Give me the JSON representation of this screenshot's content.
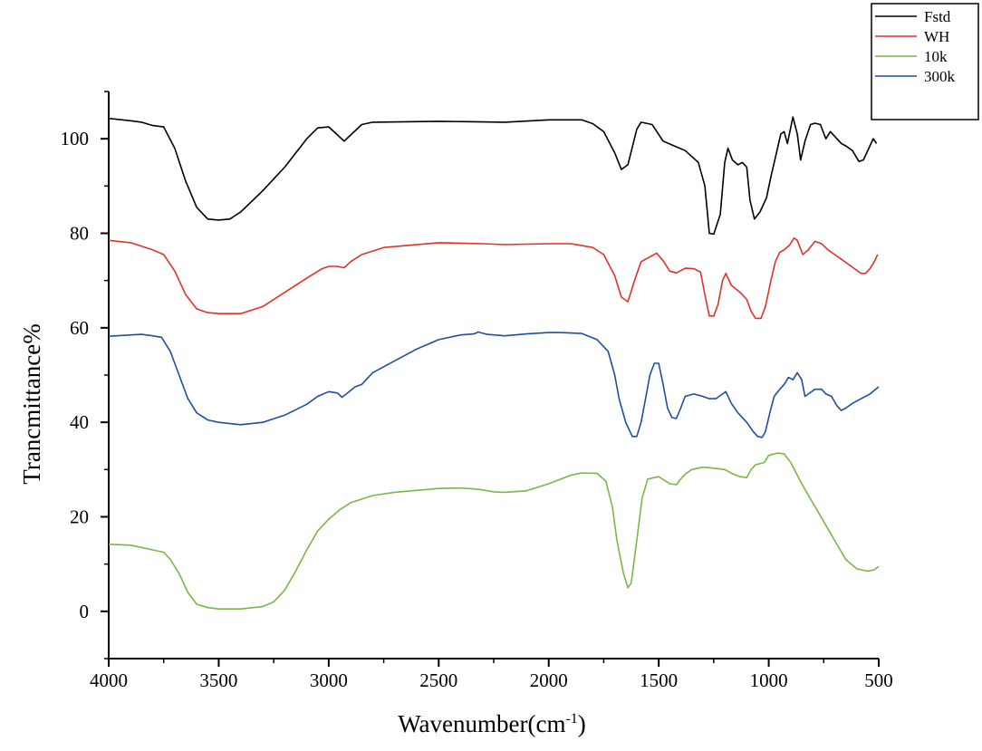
{
  "chart_data": {
    "type": "line",
    "title": "",
    "xlabel": "Wavenumber(cm",
    "xlabel_sup": "-1",
    "xlabel_close": ")",
    "ylabel": "Trancmittance%",
    "xlim": [
      4000,
      500
    ],
    "ylim": [
      -10,
      110
    ],
    "x_ticks": [
      "4000",
      "3500",
      "3000",
      "2500",
      "2000",
      "1500",
      "1000",
      "500"
    ],
    "x_tick_values": [
      4000,
      3500,
      3000,
      2500,
      2000,
      1500,
      1000,
      500
    ],
    "y_ticks": [
      "0",
      "20",
      "40",
      "60",
      "80",
      "100"
    ],
    "y_tick_values": [
      0,
      20,
      40,
      60,
      80,
      100
    ],
    "grid": false,
    "legend_position": "top-right",
    "series": [
      {
        "name": "Fstd",
        "color": "#000000",
        "points": [
          [
            4000,
            104.3
          ],
          [
            3900,
            103.8
          ],
          [
            3850,
            103.5
          ],
          [
            3800,
            102.8
          ],
          [
            3750,
            102.5
          ],
          [
            3700,
            98
          ],
          [
            3650,
            91
          ],
          [
            3600,
            85.5
          ],
          [
            3550,
            83
          ],
          [
            3500,
            82.8
          ],
          [
            3450,
            83
          ],
          [
            3400,
            84.5
          ],
          [
            3300,
            89
          ],
          [
            3200,
            94
          ],
          [
            3100,
            100
          ],
          [
            3050,
            102.3
          ],
          [
            3000,
            102.5
          ],
          [
            2960,
            100.8
          ],
          [
            2930,
            99.5
          ],
          [
            2900,
            100.8
          ],
          [
            2850,
            103
          ],
          [
            2800,
            103.5
          ],
          [
            2500,
            103.7
          ],
          [
            2200,
            103.5
          ],
          [
            2000,
            104
          ],
          [
            1850,
            104
          ],
          [
            1800,
            103.2
          ],
          [
            1750,
            101.5
          ],
          [
            1700,
            97
          ],
          [
            1670,
            93.5
          ],
          [
            1640,
            94.5
          ],
          [
            1600,
            102
          ],
          [
            1580,
            103.5
          ],
          [
            1530,
            103
          ],
          [
            1480,
            99.5
          ],
          [
            1430,
            98.5
          ],
          [
            1380,
            97.5
          ],
          [
            1320,
            95
          ],
          [
            1290,
            90
          ],
          [
            1270,
            80
          ],
          [
            1250,
            79.8
          ],
          [
            1220,
            84
          ],
          [
            1200,
            95
          ],
          [
            1185,
            98
          ],
          [
            1165,
            95.5
          ],
          [
            1140,
            94.5
          ],
          [
            1120,
            95
          ],
          [
            1100,
            94
          ],
          [
            1085,
            87
          ],
          [
            1065,
            83
          ],
          [
            1040,
            84.5
          ],
          [
            1010,
            87.5
          ],
          [
            990,
            92
          ],
          [
            965,
            97
          ],
          [
            945,
            101
          ],
          [
            930,
            101.5
          ],
          [
            915,
            99
          ],
          [
            890,
            104.6
          ],
          [
            870,
            101
          ],
          [
            855,
            95.5
          ],
          [
            835,
            99.5
          ],
          [
            810,
            103
          ],
          [
            790,
            103.3
          ],
          [
            765,
            103
          ],
          [
            740,
            100
          ],
          [
            720,
            101.5
          ],
          [
            690,
            100
          ],
          [
            670,
            99
          ],
          [
            650,
            98.5
          ],
          [
            620,
            97.5
          ],
          [
            590,
            95.2
          ],
          [
            570,
            95.5
          ],
          [
            545,
            98
          ],
          [
            525,
            100
          ],
          [
            510,
            99
          ]
        ]
      },
      {
        "name": "WH",
        "color": "#e03228",
        "points": [
          [
            4000,
            78.5
          ],
          [
            3900,
            78
          ],
          [
            3800,
            76.5
          ],
          [
            3750,
            75.5
          ],
          [
            3700,
            72
          ],
          [
            3650,
            67
          ],
          [
            3600,
            64
          ],
          [
            3550,
            63.2
          ],
          [
            3500,
            63
          ],
          [
            3400,
            63
          ],
          [
            3300,
            64.5
          ],
          [
            3200,
            67.5
          ],
          [
            3100,
            70.5
          ],
          [
            3030,
            72.5
          ],
          [
            3000,
            73
          ],
          [
            2960,
            73
          ],
          [
            2930,
            72.7
          ],
          [
            2900,
            74
          ],
          [
            2850,
            75.5
          ],
          [
            2750,
            77
          ],
          [
            2500,
            78
          ],
          [
            2300,
            77.8
          ],
          [
            2200,
            77.6
          ],
          [
            2000,
            77.8
          ],
          [
            1900,
            77.8
          ],
          [
            1800,
            77
          ],
          [
            1750,
            75.5
          ],
          [
            1700,
            71
          ],
          [
            1670,
            66.5
          ],
          [
            1640,
            65.5
          ],
          [
            1610,
            70
          ],
          [
            1580,
            74
          ],
          [
            1540,
            75
          ],
          [
            1510,
            75.8
          ],
          [
            1480,
            74.2
          ],
          [
            1450,
            72
          ],
          [
            1420,
            71.6
          ],
          [
            1380,
            72.6
          ],
          [
            1340,
            72.5
          ],
          [
            1310,
            71.8
          ],
          [
            1290,
            67
          ],
          [
            1270,
            62.5
          ],
          [
            1250,
            62.5
          ],
          [
            1230,
            65
          ],
          [
            1210,
            70
          ],
          [
            1195,
            71.5
          ],
          [
            1170,
            69
          ],
          [
            1130,
            67.5
          ],
          [
            1100,
            66
          ],
          [
            1080,
            63.5
          ],
          [
            1060,
            62
          ],
          [
            1035,
            62
          ],
          [
            1015,
            64.5
          ],
          [
            990,
            70
          ],
          [
            970,
            74
          ],
          [
            950,
            76
          ],
          [
            930,
            76.5
          ],
          [
            905,
            77.5
          ],
          [
            885,
            79
          ],
          [
            870,
            78.5
          ],
          [
            845,
            75.5
          ],
          [
            820,
            76.5
          ],
          [
            790,
            78.3
          ],
          [
            760,
            77.8
          ],
          [
            730,
            76.5
          ],
          [
            700,
            75.5
          ],
          [
            670,
            74.5
          ],
          [
            640,
            73.5
          ],
          [
            610,
            72.5
          ],
          [
            580,
            71.5
          ],
          [
            560,
            71.5
          ],
          [
            540,
            72.5
          ],
          [
            520,
            74
          ],
          [
            505,
            75.5
          ]
        ]
      },
      {
        "name": "10k",
        "color": "#7ab648",
        "points": [
          [
            4000,
            14.2
          ],
          [
            3900,
            14
          ],
          [
            3800,
            13
          ],
          [
            3750,
            12.5
          ],
          [
            3720,
            11
          ],
          [
            3680,
            8
          ],
          [
            3640,
            4
          ],
          [
            3600,
            1.5
          ],
          [
            3550,
            0.8
          ],
          [
            3500,
            0.5
          ],
          [
            3400,
            0.5
          ],
          [
            3300,
            1
          ],
          [
            3250,
            2
          ],
          [
            3200,
            4.5
          ],
          [
            3150,
            8.5
          ],
          [
            3100,
            13
          ],
          [
            3050,
            17
          ],
          [
            3000,
            19.5
          ],
          [
            2950,
            21.5
          ],
          [
            2900,
            23
          ],
          [
            2800,
            24.5
          ],
          [
            2700,
            25.2
          ],
          [
            2500,
            26
          ],
          [
            2400,
            26.1
          ],
          [
            2340,
            25.9
          ],
          [
            2300,
            25.7
          ],
          [
            2250,
            25.3
          ],
          [
            2200,
            25.2
          ],
          [
            2100,
            25.5
          ],
          [
            2000,
            27
          ],
          [
            1900,
            28.8
          ],
          [
            1850,
            29.3
          ],
          [
            1780,
            29.2
          ],
          [
            1740,
            27.5
          ],
          [
            1710,
            22
          ],
          [
            1690,
            15
          ],
          [
            1660,
            8
          ],
          [
            1640,
            5
          ],
          [
            1625,
            6
          ],
          [
            1600,
            15
          ],
          [
            1575,
            24
          ],
          [
            1550,
            28
          ],
          [
            1500,
            28.5
          ],
          [
            1450,
            27
          ],
          [
            1420,
            26.8
          ],
          [
            1400,
            28
          ],
          [
            1380,
            29
          ],
          [
            1350,
            30
          ],
          [
            1300,
            30.5
          ],
          [
            1250,
            30.3
          ],
          [
            1200,
            30
          ],
          [
            1160,
            29
          ],
          [
            1130,
            28.5
          ],
          [
            1100,
            28.3
          ],
          [
            1080,
            30
          ],
          [
            1060,
            31
          ],
          [
            1020,
            31.5
          ],
          [
            1000,
            33
          ],
          [
            960,
            33.5
          ],
          [
            930,
            33.3
          ],
          [
            900,
            31.5
          ],
          [
            850,
            27
          ],
          [
            800,
            23
          ],
          [
            750,
            19
          ],
          [
            700,
            15
          ],
          [
            650,
            11
          ],
          [
            600,
            9
          ],
          [
            550,
            8.5
          ],
          [
            520,
            8.8
          ],
          [
            500,
            9.5
          ]
        ]
      },
      {
        "name": "300k",
        "color": "#1f4e9c",
        "points": [
          [
            4000,
            58.2
          ],
          [
            3900,
            58.5
          ],
          [
            3850,
            58.6
          ],
          [
            3800,
            58.3
          ],
          [
            3760,
            58
          ],
          [
            3720,
            55
          ],
          [
            3680,
            50
          ],
          [
            3640,
            45
          ],
          [
            3600,
            42
          ],
          [
            3550,
            40.5
          ],
          [
            3500,
            40
          ],
          [
            3400,
            39.5
          ],
          [
            3300,
            40
          ],
          [
            3200,
            41.5
          ],
          [
            3100,
            43.8
          ],
          [
            3050,
            45.5
          ],
          [
            3000,
            46.5
          ],
          [
            2960,
            46.2
          ],
          [
            2940,
            45.3
          ],
          [
            2920,
            46
          ],
          [
            2880,
            47.5
          ],
          [
            2850,
            48
          ],
          [
            2800,
            50.5
          ],
          [
            2700,
            53
          ],
          [
            2600,
            55.5
          ],
          [
            2500,
            57.5
          ],
          [
            2400,
            58.5
          ],
          [
            2340,
            58.7
          ],
          [
            2320,
            59.1
          ],
          [
            2280,
            58.6
          ],
          [
            2200,
            58.3
          ],
          [
            2100,
            58.7
          ],
          [
            2000,
            59
          ],
          [
            1950,
            59
          ],
          [
            1850,
            58.8
          ],
          [
            1780,
            57.5
          ],
          [
            1730,
            55
          ],
          [
            1700,
            50
          ],
          [
            1680,
            45
          ],
          [
            1650,
            40
          ],
          [
            1620,
            37
          ],
          [
            1600,
            37
          ],
          [
            1580,
            40
          ],
          [
            1560,
            45
          ],
          [
            1540,
            50
          ],
          [
            1520,
            52.5
          ],
          [
            1500,
            52.5
          ],
          [
            1480,
            48
          ],
          [
            1460,
            43
          ],
          [
            1440,
            41
          ],
          [
            1420,
            40.8
          ],
          [
            1400,
            43
          ],
          [
            1380,
            45.5
          ],
          [
            1340,
            46
          ],
          [
            1300,
            45.5
          ],
          [
            1270,
            45
          ],
          [
            1240,
            45
          ],
          [
            1210,
            46
          ],
          [
            1195,
            46.5
          ],
          [
            1170,
            44
          ],
          [
            1140,
            42
          ],
          [
            1100,
            40
          ],
          [
            1070,
            38
          ],
          [
            1050,
            37
          ],
          [
            1030,
            36.8
          ],
          [
            1015,
            38
          ],
          [
            995,
            42
          ],
          [
            975,
            45.5
          ],
          [
            950,
            47
          ],
          [
            930,
            48
          ],
          [
            910,
            49.5
          ],
          [
            890,
            49
          ],
          [
            870,
            50.5
          ],
          [
            850,
            49
          ],
          [
            835,
            45.5
          ],
          [
            820,
            46
          ],
          [
            790,
            47
          ],
          [
            760,
            47
          ],
          [
            740,
            46
          ],
          [
            715,
            45.5
          ],
          [
            690,
            43.5
          ],
          [
            670,
            42.5
          ],
          [
            650,
            43
          ],
          [
            620,
            44
          ],
          [
            580,
            45
          ],
          [
            540,
            46
          ],
          [
            500,
            47.5
          ]
        ]
      }
    ]
  }
}
